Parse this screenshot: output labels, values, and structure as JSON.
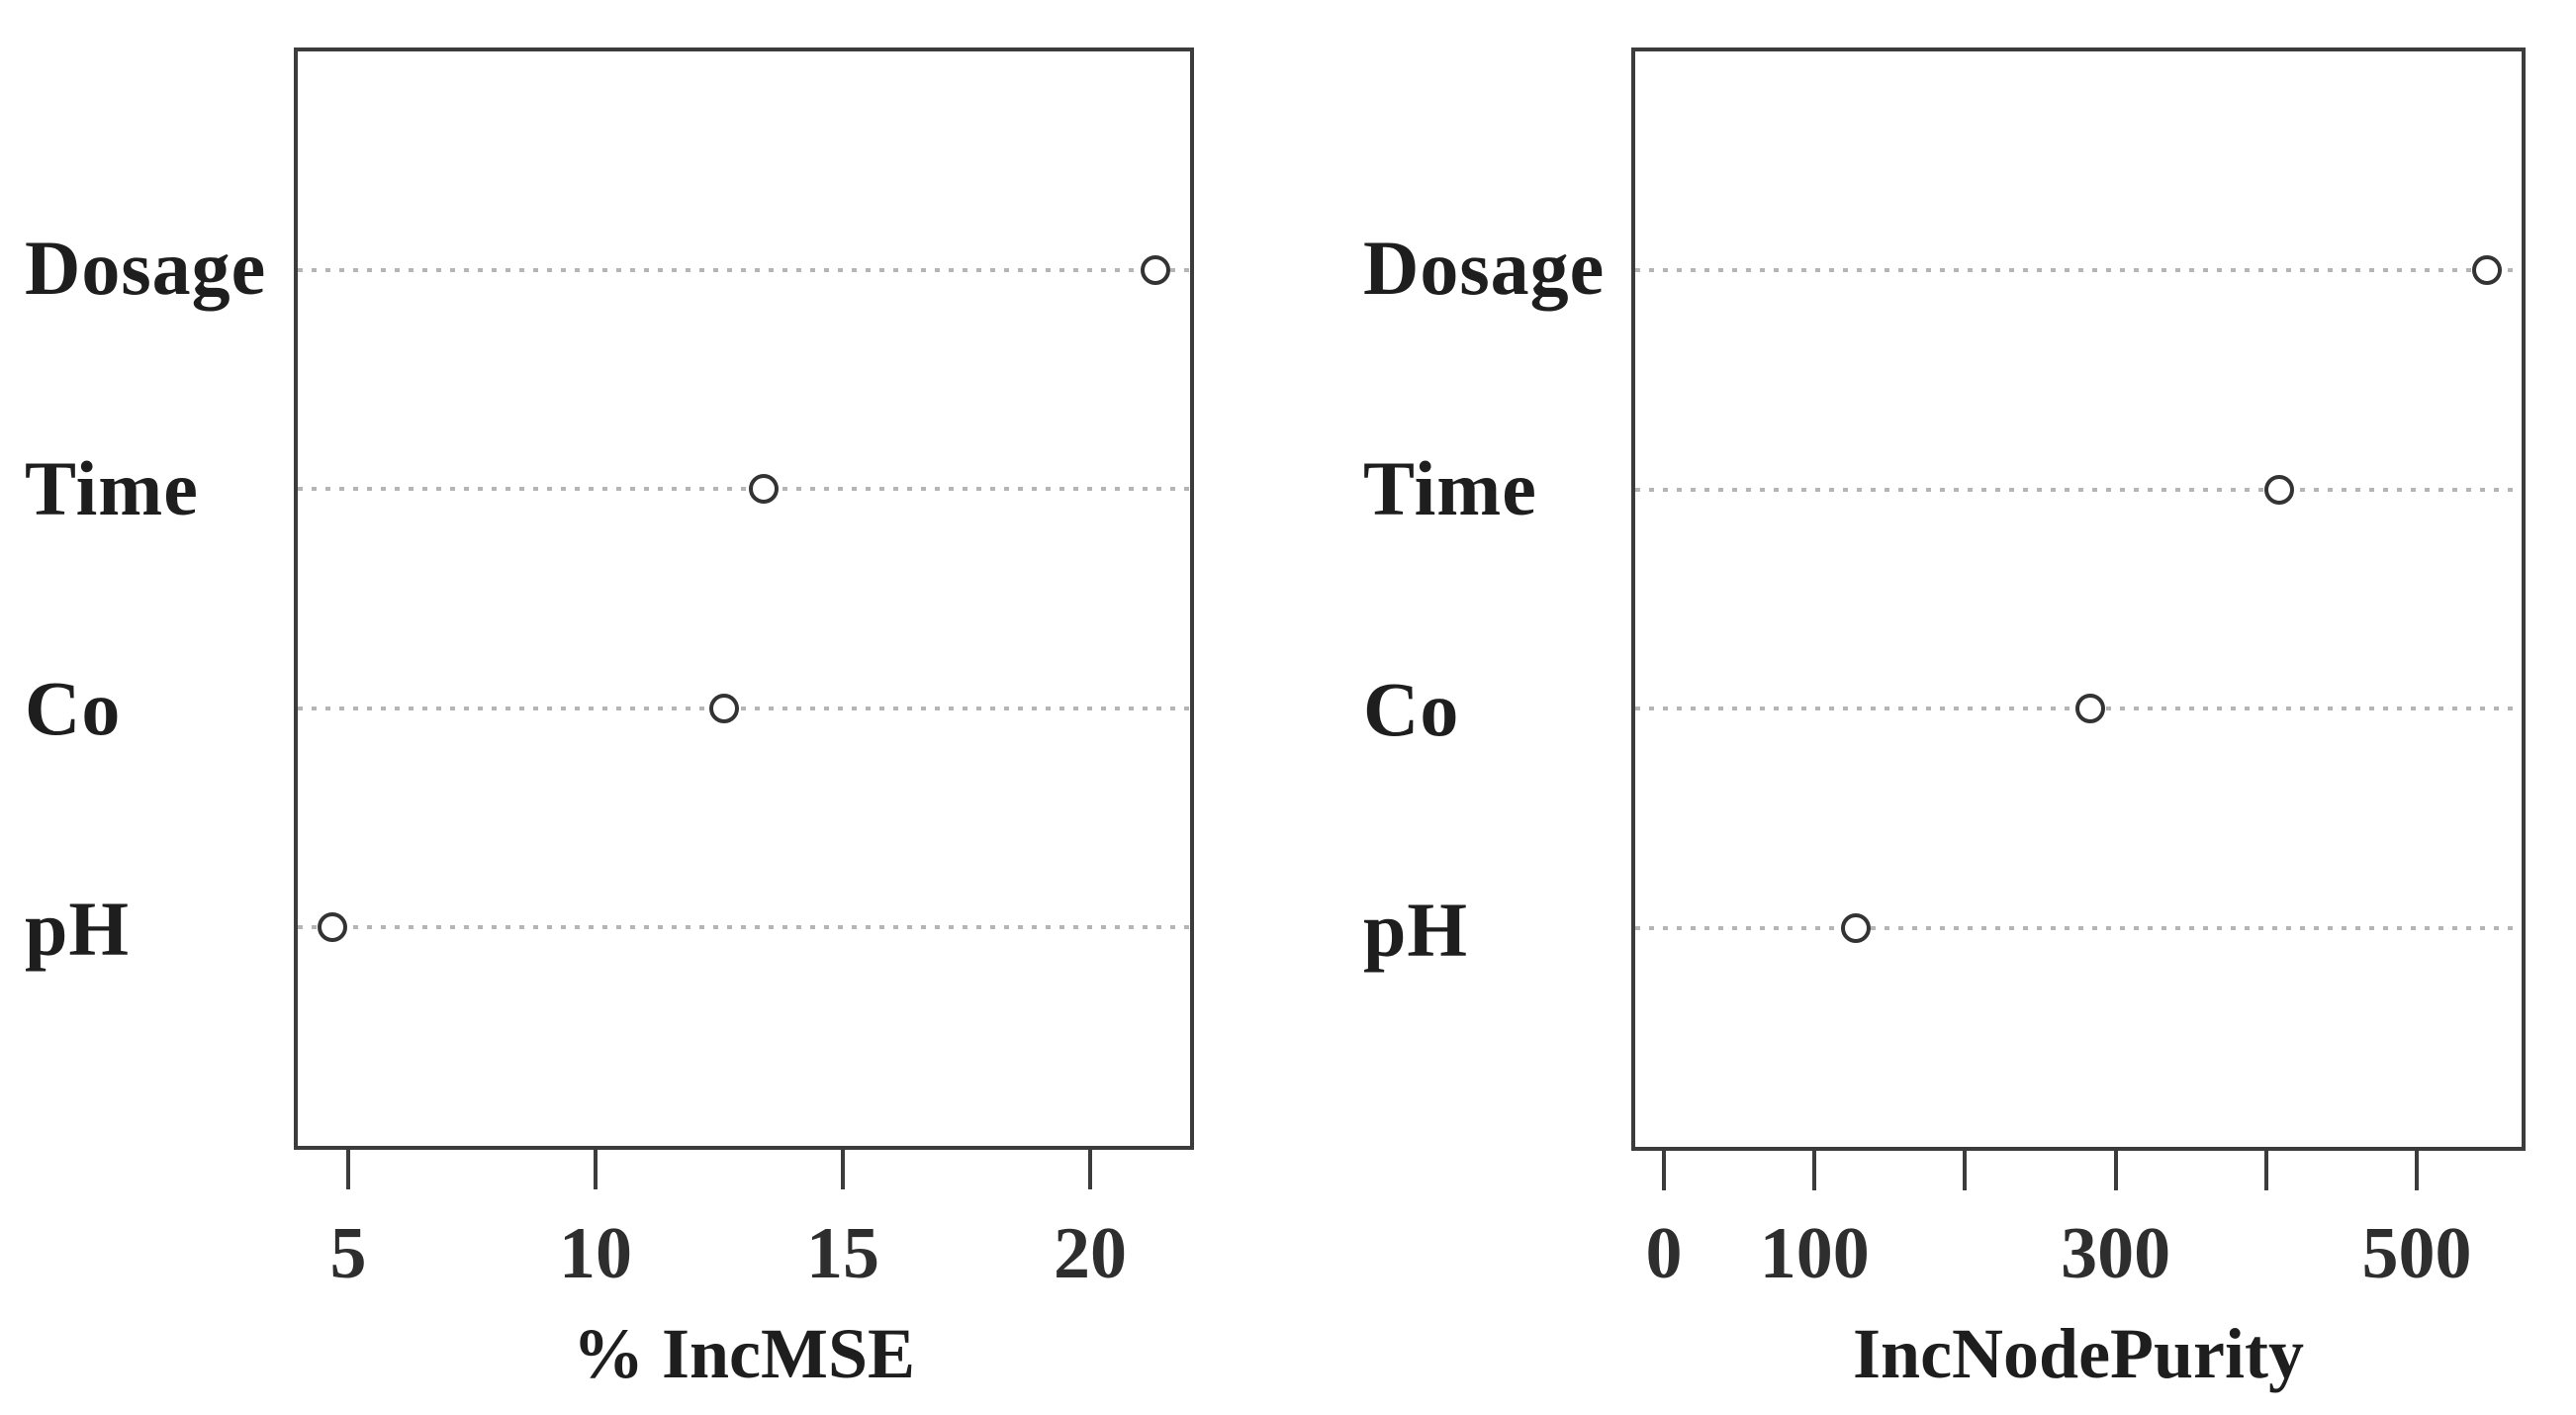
{
  "figure": {
    "background_color": "#ffffff",
    "box_border_color": "#3c3c3c",
    "dotted_line_color": "#b5b5b5",
    "point_stroke_color": "#333333",
    "point_fill_color": "#ffffff",
    "text_color": "#1e1e1e"
  },
  "chart_data": [
    {
      "type": "scatter",
      "subtype": "dotchart",
      "title": "",
      "xlabel": "% IncMSE",
      "ylabel": "",
      "categories": [
        "Dosage",
        "Time",
        "Co",
        "pH"
      ],
      "values": [
        21.4,
        13.4,
        12.6,
        4.6
      ],
      "xlim": [
        3.9,
        22.1
      ],
      "grid": "dotted-horizontal",
      "legend": "none",
      "ticks": [
        {
          "value": 5,
          "label": "5"
        },
        {
          "value": 10,
          "label": "10"
        },
        {
          "value": 15,
          "label": "15"
        },
        {
          "value": 20,
          "label": "20"
        }
      ]
    },
    {
      "type": "scatter",
      "subtype": "dotchart",
      "title": "",
      "xlabel": "IncNodePurity",
      "ylabel": "",
      "categories": [
        "Dosage",
        "Time",
        "Co",
        "pH"
      ],
      "values": [
        549,
        410,
        283,
        126
      ],
      "xlim": [
        -21.7,
        572.3
      ],
      "grid": "dotted-horizontal",
      "legend": "none",
      "ticks": [
        {
          "value": 0,
          "label": "0"
        },
        {
          "value": 100,
          "label": "100"
        },
        {
          "value": 200,
          "label": ""
        },
        {
          "value": 300,
          "label": "300"
        },
        {
          "value": 400,
          "label": ""
        },
        {
          "value": 500,
          "label": "500"
        }
      ]
    }
  ]
}
